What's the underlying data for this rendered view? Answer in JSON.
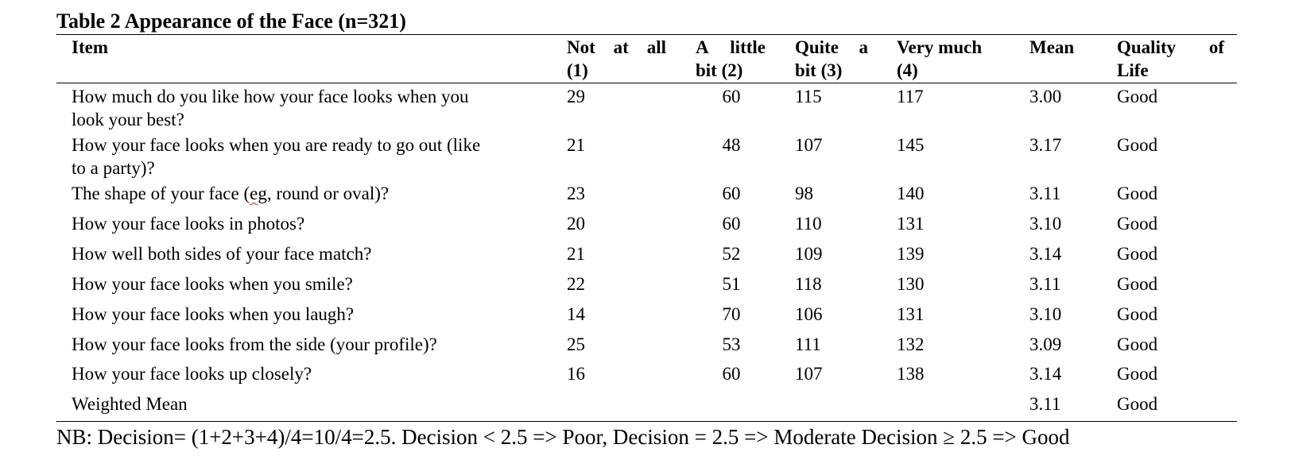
{
  "table": {
    "title": "Table 2 Appearance of the Face (n=321)",
    "headers": {
      "item": "Item",
      "not_at_all": [
        "Not at all",
        "(1)"
      ],
      "a_little": [
        "A little",
        "bit (2)"
      ],
      "quite": [
        "Quite a",
        "bit (3)"
      ],
      "very": [
        "Very much",
        "(4)"
      ],
      "mean": "Mean",
      "qol": [
        "Quality of",
        "Life"
      ]
    },
    "rows": [
      {
        "item": [
          "How much do you like how your face looks when you",
          "look your best?"
        ],
        "c1": "29",
        "c2": "60",
        "c3": "115",
        "c4": "117",
        "mean": "3.00",
        "qol": "Good"
      },
      {
        "item": [
          "How your face looks when you are ready to go out (like",
          "to a party)?"
        ],
        "c1": "21",
        "c2": "48",
        "c3": "107",
        "c4": "145",
        "mean": "3.17",
        "qol": "Good"
      },
      {
        "item_pre": "The shape of your face (",
        "item_err": "eg",
        "item_post": ", round or oval)?",
        "c1": "23",
        "c2": "60",
        "c3": "98",
        "c4": "140",
        "mean": "3.11",
        "qol": "Good"
      },
      {
        "item": [
          "How your face looks in photos?"
        ],
        "c1": "20",
        "c2": "60",
        "c3": "110",
        "c4": "131",
        "mean": "3.10",
        "qol": "Good"
      },
      {
        "item": [
          "How well both sides of your face match?"
        ],
        "c1": "21",
        "c2": "52",
        "c3": "109",
        "c4": "139",
        "mean": "3.14",
        "qol": "Good"
      },
      {
        "item": [
          "How your face looks when you smile?"
        ],
        "c1": "22",
        "c2": "51",
        "c3": "118",
        "c4": "130",
        "mean": "3.11",
        "qol": "Good"
      },
      {
        "item": [
          "How your face looks when you laugh?"
        ],
        "c1": "14",
        "c2": "70",
        "c3": "106",
        "c4": "131",
        "mean": "3.10",
        "qol": "Good"
      },
      {
        "item": [
          "How your face looks from the side (your profile)?"
        ],
        "c1": "25",
        "c2": "53",
        "c3": "111",
        "c4": "132",
        "mean": "3.09",
        "qol": "Good"
      },
      {
        "item": [
          "How your face looks up closely?"
        ],
        "c1": "16",
        "c2": "60",
        "c3": "107",
        "c4": "138",
        "mean": "3.14",
        "qol": "Good"
      }
    ],
    "weighted": {
      "label": "Weighted Mean",
      "mean": "3.11",
      "qol": "Good"
    },
    "note": "NB: Decision= (1+2+3+4)/4=10/4=2.5. Decision < 2.5 => Poor, Decision = 2.5 => Moderate Decision ≥ 2.5 => Good"
  }
}
